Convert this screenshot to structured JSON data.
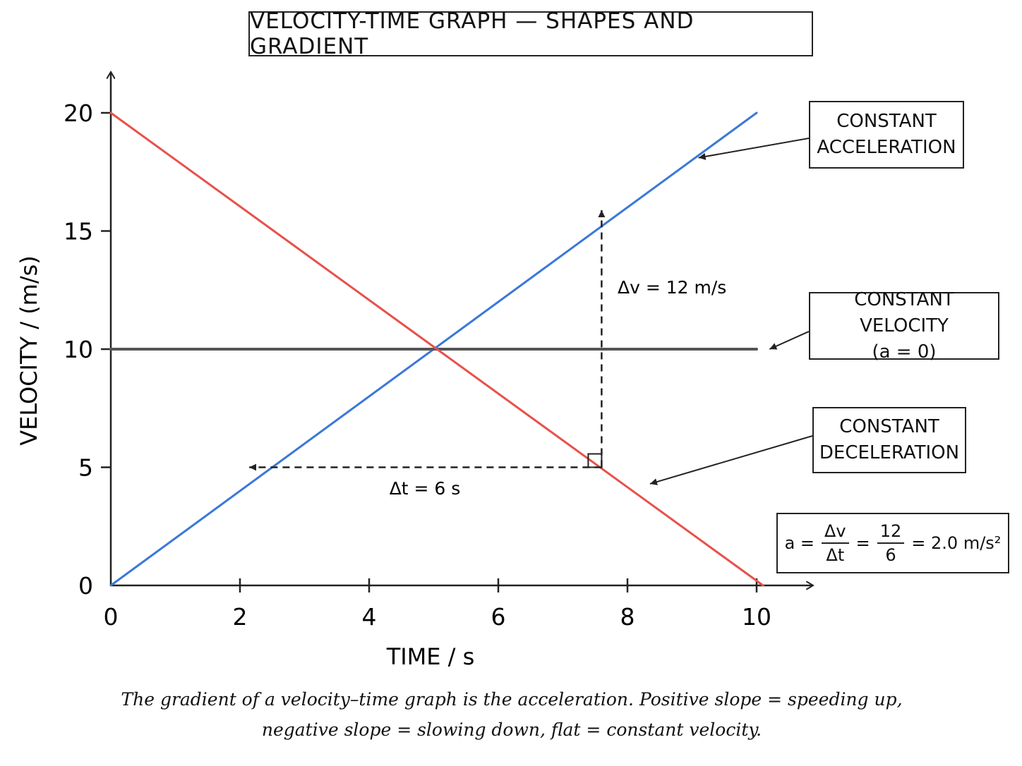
{
  "chart_data": {
    "type": "line",
    "title": "VELOCITY-TIME GRAPH — SHAPES AND GRADIENT",
    "xlabel": "TIME / s",
    "ylabel": "VELOCITY / (m/s)",
    "xlim": [
      0,
      10.5
    ],
    "ylim": [
      0,
      20
    ],
    "xticks": [
      0,
      2,
      4,
      6,
      8,
      10
    ],
    "yticks": [
      0,
      5,
      10,
      15,
      20
    ],
    "grid": false,
    "series": [
      {
        "name": "CONSTANT ACCELERATION",
        "color": "#3a78d8",
        "x": [
          0,
          10
        ],
        "y": [
          0,
          20
        ]
      },
      {
        "name": "CONSTANT VELOCITY (a = 0)",
        "color": "#555555",
        "x": [
          0,
          10
        ],
        "y": [
          10,
          10
        ]
      },
      {
        "name": "CONSTANT DECELERATION",
        "color": "#e8504a",
        "x": [
          0,
          10.1
        ],
        "y": [
          20,
          0
        ]
      }
    ],
    "annotations": {
      "dv_label": "Δv = 12 m/s",
      "dt_label": "Δt = 6 s",
      "triangle": {
        "x_start": 2.1,
        "x_end": 7.6,
        "y_start": 5,
        "y_end": 16
      }
    }
  },
  "callouts": {
    "acceleration": [
      "CONSTANT",
      "ACCELERATION"
    ],
    "velocity": [
      "CONSTANT VELOCITY",
      "(a = 0)"
    ],
    "deceleration": [
      "CONSTANT",
      "DECELERATION"
    ]
  },
  "formula": {
    "lhs": "a =",
    "frac1_num": "Δv",
    "frac1_den": "Δt",
    "eq1": "=",
    "frac2_num": "12",
    "frac2_den": "6",
    "rhs": "= 2.0 m/s²"
  },
  "caption": {
    "line1": "The gradient of a velocity–time graph is the acceleration. Positive slope = speeding up,",
    "line2": "negative slope = slowing down, flat = constant velocity."
  }
}
